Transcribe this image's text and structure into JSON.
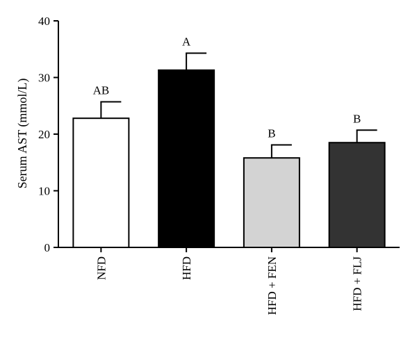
{
  "chart_data": {
    "type": "bar",
    "title": "",
    "xlabel": "",
    "ylabel": "Serum AST (mmol/L)",
    "ylim": [
      0,
      40
    ],
    "yticks": [
      "0",
      "10",
      "20",
      "30",
      "40"
    ],
    "yticks_values": [
      0,
      10,
      20,
      30,
      40
    ],
    "categories": [
      "NFD",
      "HFD",
      "HFD + FEN",
      "HFD + FLJ"
    ],
    "values": [
      22.8,
      31.3,
      15.8,
      18.5
    ],
    "errors": [
      2.9,
      3.0,
      2.3,
      2.2
    ],
    "annotations": [
      "AB",
      "A",
      "B",
      "B"
    ],
    "colors": [
      "#ffffff",
      "#000000",
      "#d3d3d3",
      "#333333"
    ],
    "grid": false,
    "legend": "none"
  }
}
